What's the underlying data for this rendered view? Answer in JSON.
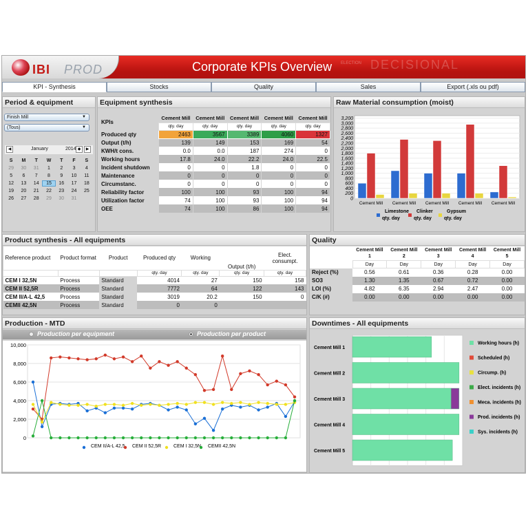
{
  "header": {
    "title": "Corporate KPIs Overview",
    "logo_ibi": "IBI",
    "logo_prod": "PROD",
    "watermark_small": "ELECTION",
    "watermark_big": "DECISIONAL"
  },
  "tabs": [
    {
      "label": "KPI - Synthesis",
      "active": true
    },
    {
      "label": "Stocks"
    },
    {
      "label": "Quality"
    },
    {
      "label": "Sales"
    },
    {
      "label": "Export (.xls ou pdf)"
    }
  ],
  "period": {
    "title": "Period & equipment",
    "equipment": "Finish Mill",
    "filter": "(Tous)",
    "month": "January",
    "year": "2014",
    "weekdays": [
      "S",
      "M",
      "T",
      "W",
      "T",
      "F",
      "S"
    ],
    "weeks": [
      [
        "29",
        "30",
        "31",
        "1",
        "2",
        "3",
        "4"
      ],
      [
        "5",
        "6",
        "7",
        "8",
        "9",
        "10",
        "11"
      ],
      [
        "12",
        "13",
        "14",
        "15",
        "16",
        "17",
        "18"
      ],
      [
        "19",
        "20",
        "21",
        "22",
        "23",
        "24",
        "25"
      ],
      [
        "26",
        "27",
        "28",
        "29",
        "30",
        "31",
        ""
      ]
    ],
    "selected_day": "15"
  },
  "equipment_synthesis": {
    "title": "Equipment synthesis",
    "kpis_label": "KPIs",
    "columns": [
      "Cement Mill",
      "Cement Mill",
      "Cement Mill",
      "Cement Mill",
      "Cement Mill"
    ],
    "unit": "qty. day",
    "rows": [
      {
        "label": "Produced qty",
        "values": [
          "2463",
          "3567",
          "3389",
          "4060",
          "1327"
        ]
      },
      {
        "label": "Output (t/h)",
        "values": [
          "139",
          "149",
          "153",
          "169",
          "54"
        ]
      },
      {
        "label": "KWH/t cons.",
        "values": [
          "0.0",
          "0.0",
          "187",
          "274",
          "0"
        ]
      },
      {
        "label": "Working hours",
        "values": [
          "17.8",
          "24.0",
          "22.2",
          "24.0",
          "22.5"
        ]
      },
      {
        "label": "Incident shutdown",
        "values": [
          "0",
          "0",
          "1.8",
          "0",
          "0"
        ]
      },
      {
        "label": "Maintenance",
        "values": [
          "0",
          "0",
          "0",
          "0",
          "0"
        ]
      },
      {
        "label": "Circumstanc.",
        "values": [
          "0",
          "0",
          "0",
          "0",
          "0"
        ]
      },
      {
        "label": "Reliability factor",
        "values": [
          "100",
          "100",
          "93",
          "100",
          "94"
        ]
      },
      {
        "label": "Utilization factor",
        "values": [
          "74",
          "100",
          "93",
          "100",
          "94"
        ]
      },
      {
        "label": "OEE",
        "values": [
          "74",
          "100",
          "86",
          "100",
          "94"
        ]
      }
    ],
    "highlight_colors": [
      "#f2a33a",
      "#3aaa5a",
      "#55b870",
      "#2e9e48",
      "#d9343a"
    ]
  },
  "raw_material": {
    "title": "Raw Material consumption (moist)",
    "chart_data": {
      "type": "bar",
      "categories": [
        "Cement Mill",
        "Cement Mill",
        "Cement Mill",
        "Cement Mill",
        "Cement Mill"
      ],
      "series": [
        {
          "name": "Limestone qty. day",
          "values": [
            600,
            1100,
            1000,
            1000,
            250
          ]
        },
        {
          "name": "Clinker qty. day",
          "values": [
            1800,
            2350,
            2300,
            2950,
            1300
          ]
        },
        {
          "name": "Gypsum qty. day",
          "values": [
            150,
            200,
            200,
            200,
            50
          ]
        }
      ],
      "y_ticks": [
        "0",
        "200",
        "400",
        "600",
        "800",
        "1,000",
        "1,200",
        "1,400",
        "1,600",
        "1,800",
        "2,000",
        "2,200",
        "2,400",
        "2,600",
        "2,800",
        "3,000",
        "3,200"
      ],
      "ylim": [
        0,
        3300
      ],
      "colors": [
        "#2d6cd0",
        "#d23a3a",
        "#e8d640"
      ]
    }
  },
  "product_synthesis": {
    "title": "Product synthesis - All equipments",
    "headers": [
      "Reference product",
      "Product format",
      "Product",
      "Produced qty",
      "Working",
      "Output (t/h)",
      "Elect. consumpt."
    ],
    "unit": "qty. day",
    "rows": [
      {
        "ref": "CEM I 32,5N",
        "format": "Process",
        "product": "Standard",
        "qty": "4014",
        "working": "27",
        "output": "150",
        "elec": "158"
      },
      {
        "ref": "CEM II 52,5R",
        "format": "Process",
        "product": "Standard",
        "qty": "7772",
        "working": "64",
        "output": "122",
        "elec": "143"
      },
      {
        "ref": "CEM II/A-L 42,5",
        "format": "Process",
        "product": "Standard",
        "qty": "3019",
        "working": "20.2",
        "output": "150",
        "elec": "0"
      },
      {
        "ref": "CEMII 42,5N",
        "format": "Process",
        "product": "Standard",
        "qty": "0",
        "working": "0",
        "output": "",
        "elec": ""
      }
    ]
  },
  "quality": {
    "title": "Quality",
    "columns": [
      {
        "l1": "Cement Mill",
        "l2": "1"
      },
      {
        "l1": "Cement Mill",
        "l2": "2"
      },
      {
        "l1": "Cement Mill",
        "l2": "3"
      },
      {
        "l1": "Cement Mill",
        "l2": "4"
      },
      {
        "l1": "Cement Mill",
        "l2": "5"
      }
    ],
    "unit": "Day",
    "rows": [
      {
        "label": "Reject (%)",
        "values": [
          "0.56",
          "0.61",
          "0.36",
          "0.28",
          "0.00"
        ]
      },
      {
        "label": "SO3",
        "values": [
          "1.30",
          "1.35",
          "0.67",
          "0.72",
          "0.00"
        ]
      },
      {
        "label": "LOI (%)",
        "values": [
          "4.82",
          "6.35",
          "2.94",
          "2.47",
          "0.00"
        ]
      },
      {
        "label": "C/K (#)",
        "values": [
          "0.00",
          "0.00",
          "0.00",
          "0.00",
          "0.00"
        ]
      }
    ]
  },
  "production": {
    "title": "Production - MTD",
    "radio1": "Production per equipment",
    "radio2": "Production per product",
    "chart_data": {
      "type": "line",
      "y_ticks": [
        "0",
        "2,000",
        "4,000",
        "6,000",
        "8,000",
        "10,000"
      ],
      "ylim": [
        0,
        10000
      ],
      "series": [
        {
          "name": "CEM II/A-L 42,5",
          "color": "#1a6fd6",
          "values": [
            6000,
            1200,
            3600,
            3700,
            3600,
            3700,
            2900,
            3200,
            2700,
            3200,
            3200,
            3100,
            3600,
            3700,
            3500,
            3000,
            3300,
            3000,
            1500,
            2100,
            800,
            3100,
            3500,
            3300,
            3500,
            3000,
            3300,
            3700,
            2300,
            3900
          ]
        },
        {
          "name": "CEM II 52,5R",
          "color": "#d23a2a",
          "values": [
            3100,
            2000,
            8600,
            8700,
            8600,
            8500,
            8400,
            8500,
            8900,
            8500,
            8700,
            8200,
            8800,
            7500,
            8200,
            7800,
            8200,
            7500,
            6800,
            5100,
            5200,
            8800,
            5200,
            6900,
            7200,
            6800,
            5700,
            6100,
            5700,
            4400
          ]
        },
        {
          "name": "CEM I 32,5N",
          "color": "#f0e020",
          "values": [
            3600,
            1700,
            3800,
            3600,
            3500,
            3500,
            3600,
            3400,
            3600,
            3600,
            3500,
            3700,
            3500,
            3600,
            3500,
            3600,
            3700,
            3600,
            3800,
            3800,
            3600,
            3800,
            3700,
            3800,
            3600,
            3800,
            3700,
            3600,
            3600,
            3800
          ]
        },
        {
          "name": "CEMII 42,5N",
          "color": "#27ae3a",
          "values": [
            200,
            4000,
            0,
            0,
            0,
            0,
            0,
            0,
            0,
            0,
            0,
            0,
            0,
            0,
            0,
            0,
            0,
            0,
            0,
            0,
            0,
            0,
            0,
            0,
            0,
            0,
            0,
            0,
            0,
            4000
          ]
        }
      ]
    }
  },
  "downtimes": {
    "title": "Downtimes - All equipments",
    "chart_data": {
      "type": "bar",
      "categories": [
        "Cement Mill 1",
        "Cement Mill 2",
        "Cement Mill 3",
        "Cement Mill 4",
        "Cement Mill 5"
      ],
      "series": [
        {
          "name": "Working hours (h)",
          "values": [
            17.8,
            24.0,
            22.2,
            24.0,
            22.5
          ]
        },
        {
          "name": "Prod. incidents (h)",
          "values": [
            0,
            0,
            1.8,
            0,
            0
          ]
        }
      ],
      "xlim": [
        0,
        24.8
      ],
      "legend": [
        {
          "name": "Working hours (h)",
          "color": "#6fe0a6"
        },
        {
          "name": "Scheduled (h)",
          "color": "#e04b3a"
        },
        {
          "name": "Circump. (h)",
          "color": "#e8e040"
        },
        {
          "name": "Elect. incidents (h)",
          "color": "#3caa48"
        },
        {
          "name": "Meca. incidents (h)",
          "color": "#f09030"
        },
        {
          "name": "Prod. incidents (h)",
          "color": "#8a3a9a"
        },
        {
          "name": "Sys. incidents (h)",
          "color": "#3ad0c8"
        }
      ]
    }
  }
}
